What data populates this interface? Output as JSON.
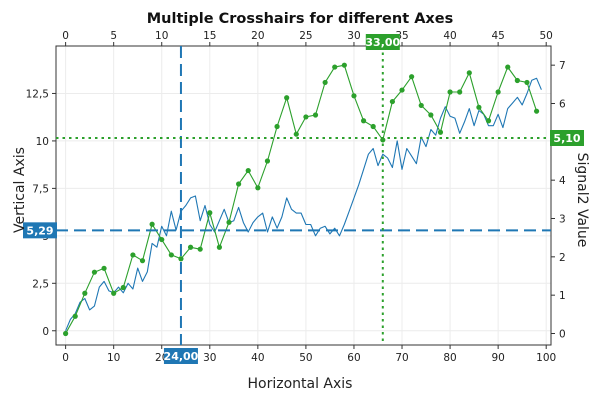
{
  "chart_data": {
    "type": "line",
    "title": "Multiple Crosshairs for different Axes",
    "xlabel": "Horizontal Axis",
    "ylabel": "Vertical Axis",
    "y2label": "Signal2 Value",
    "xlim": [
      -2,
      101
    ],
    "ylim": [
      -0.75,
      15
    ],
    "x2lim": [
      -1,
      50.5
    ],
    "y2lim": [
      -0.3,
      7.5
    ],
    "xticks": [
      "0",
      "10",
      "20",
      "30",
      "40",
      "50",
      "60",
      "70",
      "80",
      "90",
      "100"
    ],
    "yticks": [
      "0",
      "2,5",
      "5",
      "7,5",
      "10",
      "12,5"
    ],
    "x2ticks": [
      "0",
      "5",
      "10",
      "15",
      "20",
      "25",
      "30",
      "35",
      "40",
      "45",
      "50"
    ],
    "y2ticks": [
      "0",
      "1",
      "2",
      "3",
      "4",
      "5",
      "6",
      "7"
    ],
    "grid": true,
    "series": [
      {
        "axes": "primary",
        "color": "#1f77b4",
        "markers": false,
        "x": [
          0,
          1,
          2,
          3,
          4,
          5,
          6,
          7,
          8,
          9,
          10,
          11,
          12,
          13,
          14,
          15,
          16,
          17,
          18,
          19,
          20,
          21,
          22,
          23,
          24,
          25,
          26,
          27,
          28,
          29,
          30,
          31,
          32,
          33,
          34,
          35,
          36,
          37,
          38,
          39,
          40,
          41,
          42,
          43,
          44,
          45,
          46,
          47,
          48,
          49,
          50,
          51,
          52,
          53,
          54,
          55,
          56,
          57,
          58,
          59,
          60,
          61,
          62,
          63,
          64,
          65,
          66,
          67,
          68,
          69,
          70,
          71,
          72,
          73,
          74,
          75,
          76,
          77,
          78,
          79,
          80,
          81,
          82,
          83,
          84,
          85,
          86,
          87,
          88,
          89,
          90,
          91,
          92,
          93,
          94,
          95,
          96,
          97,
          98,
          99
        ],
        "y": [
          0,
          0.6,
          0.9,
          1.5,
          1.7,
          1.1,
          1.3,
          2.3,
          2.6,
          2.1,
          2.0,
          2.3,
          2.0,
          2.5,
          2.2,
          3.3,
          2.6,
          3.1,
          4.6,
          4.4,
          5.5,
          5.0,
          6.3,
          5.3,
          6.3,
          6.6,
          7.0,
          7.1,
          5.8,
          6.6,
          5.6,
          5.2,
          5.8,
          6.4,
          5.7,
          5.8,
          6.5,
          5.7,
          5.2,
          5.7,
          6.0,
          6.2,
          5.2,
          6.0,
          5.4,
          6.0,
          7.0,
          6.4,
          6.2,
          6.2,
          5.6,
          5.6,
          5.0,
          5.4,
          5.5,
          5.1,
          5.4,
          5.0,
          5.6,
          6.3,
          7.0,
          7.7,
          8.5,
          9.3,
          9.6,
          8.7,
          9.3,
          9.1,
          8.6,
          10.0,
          8.5,
          9.6,
          9.2,
          8.8,
          10.2,
          9.7,
          10.6,
          10.3,
          11.2,
          11.8,
          11.3,
          11.2,
          10.4,
          11.0,
          11.7,
          10.8,
          11.6,
          11.4,
          10.8,
          10.8,
          11.4,
          10.7,
          11.7,
          12.0,
          12.3,
          11.9,
          12.5,
          13.2,
          13.3,
          12.7
        ]
      },
      {
        "axes": "secondary",
        "color": "#2ca02c",
        "markers": true,
        "x": [
          0,
          1,
          2,
          3,
          4,
          5,
          6,
          7,
          8,
          9,
          10,
          11,
          12,
          13,
          14,
          15,
          16,
          17,
          18,
          19,
          20,
          21,
          22,
          23,
          24,
          25,
          26,
          27,
          28,
          29,
          30,
          31,
          32,
          33,
          34,
          35,
          36,
          37,
          38,
          39,
          40,
          41,
          42,
          43,
          44,
          45,
          46,
          47,
          48,
          49
        ],
        "y": [
          0,
          0.45,
          1.05,
          1.6,
          1.7,
          1.05,
          1.2,
          2.05,
          1.9,
          2.85,
          2.45,
          2.05,
          1.95,
          2.25,
          2.2,
          3.15,
          2.25,
          2.9,
          3.9,
          4.25,
          3.8,
          4.5,
          5.4,
          6.15,
          5.2,
          5.65,
          5.7,
          6.55,
          6.95,
          7.0,
          6.2,
          5.55,
          5.4,
          5.05,
          6.05,
          6.35,
          6.7,
          5.95,
          5.7,
          5.25,
          6.3,
          6.3,
          6.8,
          5.9,
          5.55,
          6.3,
          6.95,
          6.6,
          6.55,
          5.8
        ]
      }
    ],
    "crosshairs": [
      {
        "axis": "x",
        "value": 24,
        "label": "24,00",
        "color": "#1f77b4",
        "style": "dashed"
      },
      {
        "axis": "y",
        "value": 5.29,
        "label": "5,29",
        "color": "#1f77b4",
        "style": "dashed"
      },
      {
        "axis": "x2",
        "value": 33,
        "label": "33,00",
        "color": "#2ca02c",
        "style": "dotted"
      },
      {
        "axis": "y2",
        "value": 5.1,
        "label": "5,10",
        "color": "#2ca02c",
        "style": "dotted"
      }
    ]
  }
}
